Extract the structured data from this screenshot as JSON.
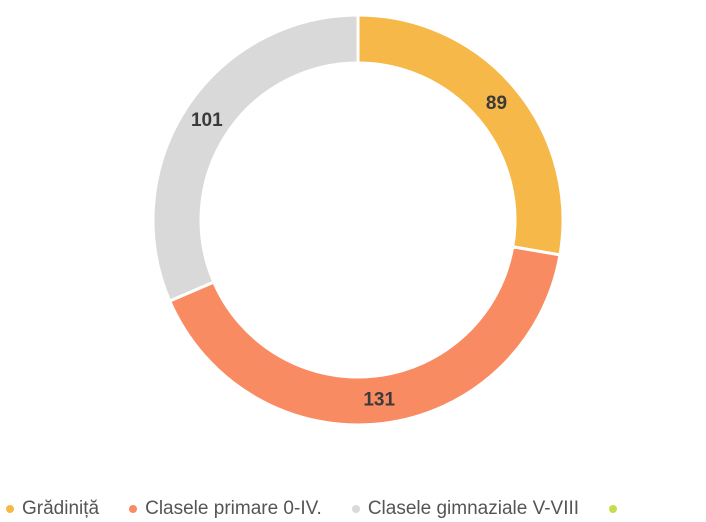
{
  "chart_data": {
    "type": "pie",
    "donut": true,
    "series": [
      {
        "name": "Grădiniță",
        "value": 89,
        "color": "#f5b849"
      },
      {
        "name": "Clasele primare 0-IV.",
        "value": 131,
        "color": "#f98b63"
      },
      {
        "name": "Clasele gimnaziale V-VIII",
        "value": 101,
        "color": "#d9d9d9"
      },
      {
        "name": "",
        "value": 0,
        "color": "#c6dc4a"
      }
    ],
    "data_labels": [
      "89",
      "131",
      "101"
    ],
    "legend_position": "bottom"
  }
}
